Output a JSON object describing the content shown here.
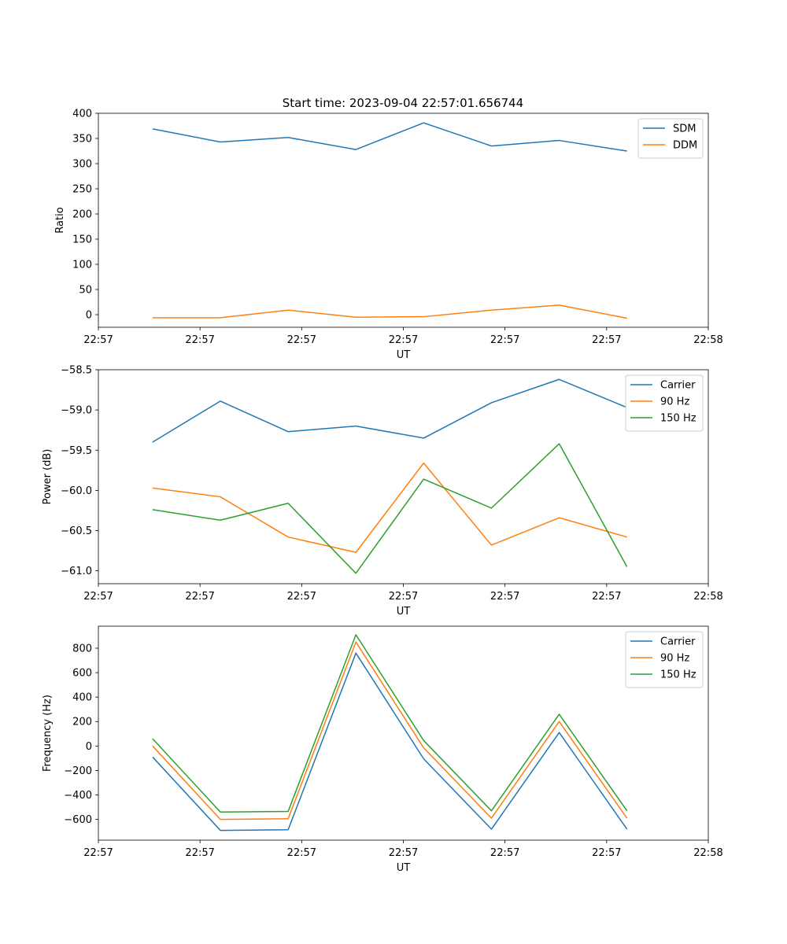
{
  "title": "Start time: 2023-09-04 22:57:01.656744",
  "colors": {
    "blue": "#1f77b4",
    "orange": "#ff7f0e",
    "green": "#2ca02c"
  },
  "chart_data": [
    {
      "type": "line",
      "title": "Start time: 2023-09-04 22:57:01.656744",
      "xlabel": "UT",
      "ylabel": "Ratio",
      "x": [
        1,
        2,
        3,
        4,
        5,
        6,
        7,
        8
      ],
      "xlim": [
        0.2,
        9.2
      ],
      "x_ticks": [
        0.2,
        1.7,
        3.2,
        4.7,
        6.2,
        7.7,
        9.2
      ],
      "x_tick_labels": [
        "22:57",
        "22:57",
        "22:57",
        "22:57",
        "22:57",
        "22:57",
        "22:58"
      ],
      "ylim": [
        -25,
        400
      ],
      "y_ticks": [
        0,
        50,
        100,
        150,
        200,
        250,
        300,
        350,
        400
      ],
      "y_tick_labels": [
        "0",
        "50",
        "100",
        "150",
        "200",
        "250",
        "300",
        "350",
        "400"
      ],
      "legend_position": "top-right",
      "series": [
        {
          "name": "SDM",
          "color": "#1f77b4",
          "values": [
            369,
            343,
            352,
            328,
            381,
            335,
            346,
            325
          ]
        },
        {
          "name": "DDM",
          "color": "#ff7f0e",
          "values": [
            -6,
            -6,
            9,
            -5,
            -4,
            9,
            19,
            -7
          ]
        }
      ]
    },
    {
      "type": "line",
      "title": "",
      "xlabel": "UT",
      "ylabel": "Power (dB)",
      "x": [
        1,
        2,
        3,
        4,
        5,
        6,
        7,
        8
      ],
      "xlim": [
        0.2,
        9.2
      ],
      "x_ticks": [
        0.2,
        1.7,
        3.2,
        4.7,
        6.2,
        7.7,
        9.2
      ],
      "x_tick_labels": [
        "22:57",
        "22:57",
        "22:57",
        "22:57",
        "22:57",
        "22:57",
        "22:58"
      ],
      "ylim": [
        -61.16,
        -58.5
      ],
      "y_ticks": [
        -58.5,
        -59.0,
        -59.5,
        -60.0,
        -60.5,
        -61.0
      ],
      "y_tick_labels": [
        "−58.5",
        "−59.0",
        "−59.5",
        "−60.0",
        "−60.5",
        "−61.0"
      ],
      "legend_position": "top-right",
      "series": [
        {
          "name": "Carrier",
          "color": "#1f77b4",
          "values": [
            -59.4,
            -58.89,
            -59.27,
            -59.2,
            -59.35,
            -58.91,
            -58.62,
            -58.97
          ]
        },
        {
          "name": "90 Hz",
          "color": "#ff7f0e",
          "values": [
            -59.97,
            -60.08,
            -60.58,
            -60.77,
            -59.66,
            -60.68,
            -60.34,
            -60.58
          ]
        },
        {
          "name": "150 Hz",
          "color": "#2ca02c",
          "values": [
            -60.24,
            -60.37,
            -60.16,
            -61.03,
            -59.86,
            -60.22,
            -59.42,
            -60.95
          ]
        }
      ]
    },
    {
      "type": "line",
      "title": "",
      "xlabel": "UT",
      "ylabel": "Frequency (Hz)",
      "x": [
        1,
        2,
        3,
        4,
        5,
        6,
        7,
        8
      ],
      "xlim": [
        0.2,
        9.2
      ],
      "x_ticks": [
        0.2,
        1.7,
        3.2,
        4.7,
        6.2,
        7.7,
        9.2
      ],
      "x_tick_labels": [
        "22:57",
        "22:57",
        "22:57",
        "22:57",
        "22:57",
        "22:57",
        "22:58"
      ],
      "ylim": [
        -770,
        980
      ],
      "y_ticks": [
        -600,
        -400,
        -200,
        0,
        200,
        400,
        600,
        800
      ],
      "y_tick_labels": [
        "−600",
        "−400",
        "−200",
        "0",
        "200",
        "400",
        "600",
        "800"
      ],
      "legend_position": "top-right",
      "series": [
        {
          "name": "Carrier",
          "color": "#1f77b4",
          "values": [
            -90,
            -690,
            -685,
            760,
            -105,
            -680,
            110,
            -680
          ]
        },
        {
          "name": "90 Hz",
          "color": "#ff7f0e",
          "values": [
            0,
            -600,
            -595,
            850,
            -15,
            -590,
            200,
            -590
          ]
        },
        {
          "name": "150 Hz",
          "color": "#2ca02c",
          "values": [
            60,
            -540,
            -535,
            910,
            45,
            -530,
            260,
            -530
          ]
        }
      ]
    }
  ]
}
